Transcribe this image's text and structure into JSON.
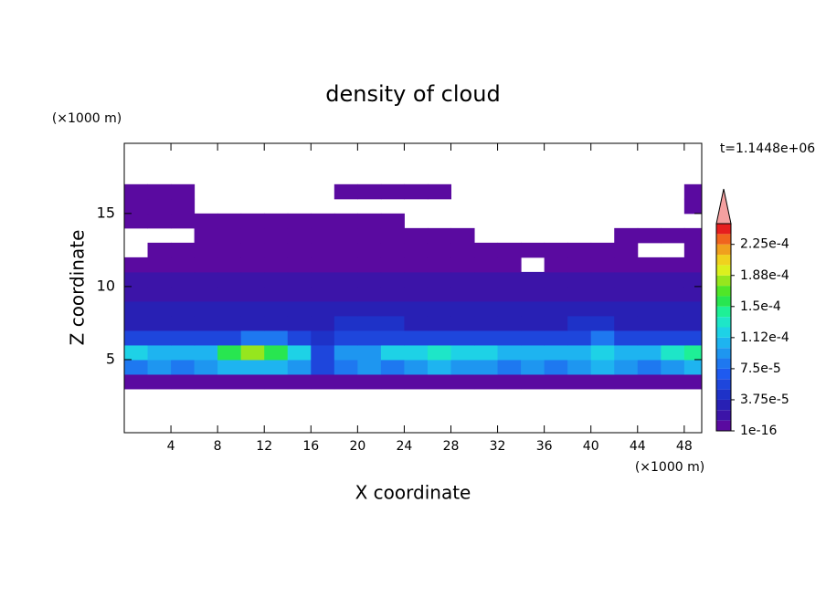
{
  "chart_data": {
    "type": "contour",
    "title": "density of cloud",
    "x_label": "X coordinate",
    "y_label": "Z coordinate",
    "x_unit": "(×1000 m)",
    "y_unit": "(×1000 m)",
    "time_label": "t=1.1448e+06",
    "xlim": [
      0,
      49.5
    ],
    "ylim": [
      0,
      19.8
    ],
    "xticks": [
      4,
      8,
      12,
      16,
      20,
      24,
      28,
      32,
      36,
      40,
      44,
      48
    ],
    "yticks": [
      5,
      10,
      15
    ],
    "x_edges": [
      0,
      2,
      4,
      6,
      8,
      10,
      12,
      14,
      16,
      18,
      20,
      22,
      24,
      26,
      28,
      30,
      32,
      34,
      36,
      38,
      40,
      42,
      44,
      46,
      48,
      50
    ],
    "y_edges": [
      0,
      1,
      2,
      3,
      4,
      5,
      6,
      7,
      8,
      9,
      10,
      11,
      12,
      13,
      14,
      15,
      16,
      17,
      18,
      19,
      20
    ],
    "z": [
      [
        null,
        null,
        null,
        null,
        null,
        null,
        null,
        null,
        null,
        null,
        null,
        null,
        null,
        null,
        null,
        null,
        null,
        null,
        null,
        null,
        null,
        null,
        null,
        null,
        null
      ],
      [
        null,
        null,
        null,
        null,
        null,
        null,
        null,
        null,
        null,
        null,
        null,
        null,
        null,
        null,
        null,
        null,
        null,
        null,
        null,
        null,
        null,
        null,
        null,
        null,
        null
      ],
      [
        null,
        null,
        null,
        null,
        null,
        null,
        null,
        null,
        null,
        null,
        null,
        null,
        null,
        null,
        null,
        null,
        null,
        null,
        null,
        null,
        null,
        null,
        null,
        null,
        null
      ],
      [
        1e-05,
        1e-05,
        1e-05,
        1e-05,
        1e-05,
        1e-05,
        1e-05,
        1e-05,
        1e-05,
        1e-05,
        1e-05,
        1e-05,
        1e-05,
        1e-05,
        1e-05,
        1e-05,
        1e-05,
        1e-05,
        1e-05,
        1e-05,
        1e-05,
        1e-05,
        1e-05,
        1e-05,
        1e-05
      ],
      [
        8e-05,
        9e-05,
        8e-05,
        9e-05,
        0.0001,
        0.0001,
        0.0001,
        9e-05,
        6e-05,
        8e-05,
        9e-05,
        8e-05,
        9e-05,
        0.0001,
        9e-05,
        9e-05,
        8e-05,
        9e-05,
        8e-05,
        9e-05,
        0.0001,
        9e-05,
        8e-05,
        9e-05,
        0.0001
      ],
      [
        0.00012,
        0.00011,
        0.00011,
        0.00011,
        0.00016,
        0.00018,
        0.00016,
        0.00012,
        6e-05,
        9e-05,
        9e-05,
        0.00012,
        0.00012,
        0.00013,
        0.00012,
        0.00012,
        0.0001,
        0.0001,
        0.0001,
        0.00011,
        0.00012,
        0.00011,
        0.00011,
        0.00013,
        0.00014
      ],
      [
        5e-05,
        5e-05,
        5e-05,
        5e-05,
        6e-05,
        8e-05,
        8e-05,
        6e-05,
        4e-05,
        6e-05,
        5e-05,
        5e-05,
        5e-05,
        6e-05,
        5e-05,
        5e-05,
        5e-05,
        5e-05,
        5e-05,
        6e-05,
        8e-05,
        5e-05,
        5e-05,
        5e-05,
        6e-05
      ],
      [
        3e-05,
        3e-05,
        3e-05,
        3e-05,
        3e-05,
        3e-05,
        3e-05,
        3e-05,
        3e-05,
        4e-05,
        4e-05,
        4e-05,
        3e-05,
        3e-05,
        3e-05,
        3e-05,
        3e-05,
        3e-05,
        3e-05,
        4e-05,
        4e-05,
        3e-05,
        3e-05,
        3e-05,
        3e-05
      ],
      [
        2.5e-05,
        2.5e-05,
        2.5e-05,
        2.5e-05,
        2.5e-05,
        2.5e-05,
        2.5e-05,
        2.5e-05,
        2.5e-05,
        2.5e-05,
        3e-05,
        2.5e-05,
        2.5e-05,
        2.5e-05,
        2.5e-05,
        2.5e-05,
        2.5e-05,
        2.5e-05,
        2.5e-05,
        2.5e-05,
        3e-05,
        2.5e-05,
        2.5e-05,
        2.5e-05,
        2.5e-05
      ],
      [
        2e-05,
        2e-05,
        2e-05,
        2e-05,
        2e-05,
        2e-05,
        2e-05,
        2e-05,
        2e-05,
        2e-05,
        2e-05,
        2e-05,
        2e-05,
        2e-05,
        2e-05,
        2e-05,
        2e-05,
        2e-05,
        2e-05,
        2e-05,
        2e-05,
        2e-05,
        2e-05,
        2e-05,
        2e-05
      ],
      [
        2e-05,
        2e-05,
        2e-05,
        2e-05,
        2e-05,
        2e-05,
        2e-05,
        2e-05,
        2e-05,
        2e-05,
        2e-05,
        2e-05,
        2e-05,
        2e-05,
        2e-05,
        2e-05,
        2e-05,
        2e-05,
        2e-05,
        2e-05,
        2e-05,
        2e-05,
        2e-05,
        2e-05,
        2e-05
      ],
      [
        1e-05,
        1e-05,
        1e-05,
        1e-05,
        1e-05,
        1e-05,
        1e-05,
        1e-05,
        1e-05,
        1e-05,
        1e-05,
        1e-05,
        1e-05,
        1e-05,
        1e-05,
        1e-05,
        1e-05,
        null,
        1e-05,
        1e-05,
        1e-05,
        1e-05,
        1e-05,
        1e-05,
        1e-05
      ],
      [
        null,
        1e-05,
        1e-05,
        1e-05,
        1e-05,
        1e-05,
        1e-05,
        1e-05,
        1e-05,
        1e-05,
        1e-05,
        1e-05,
        1e-05,
        1e-05,
        1e-05,
        1e-05,
        1e-05,
        1e-05,
        1e-05,
        1e-05,
        1e-05,
        1e-05,
        null,
        null,
        1e-05
      ],
      [
        null,
        null,
        null,
        1e-05,
        1e-05,
        1e-05,
        1e-05,
        1e-05,
        1e-05,
        1e-05,
        1e-05,
        1e-05,
        1e-05,
        1e-05,
        1e-05,
        null,
        null,
        null,
        null,
        null,
        null,
        1e-05,
        1e-05,
        1e-05,
        1e-05
      ],
      [
        1e-05,
        1e-05,
        1e-05,
        1e-05,
        1e-05,
        1e-05,
        1e-05,
        1e-05,
        1e-05,
        1e-05,
        1e-05,
        1e-05,
        null,
        null,
        null,
        null,
        null,
        null,
        null,
        null,
        null,
        null,
        null,
        null,
        null
      ],
      [
        1e-05,
        1e-05,
        1e-05,
        null,
        null,
        null,
        null,
        null,
        null,
        null,
        null,
        null,
        null,
        null,
        null,
        null,
        null,
        null,
        null,
        null,
        null,
        null,
        null,
        null,
        1e-05
      ],
      [
        1e-05,
        1e-05,
        1e-05,
        null,
        null,
        null,
        null,
        null,
        null,
        1e-05,
        1e-05,
        1e-05,
        1e-05,
        1e-05,
        null,
        null,
        null,
        null,
        null,
        null,
        null,
        null,
        null,
        null,
        1e-05
      ],
      [
        null,
        null,
        null,
        null,
        null,
        null,
        null,
        null,
        null,
        null,
        null,
        null,
        null,
        null,
        null,
        null,
        null,
        null,
        null,
        null,
        null,
        null,
        null,
        null,
        null
      ],
      [
        null,
        null,
        null,
        null,
        null,
        null,
        null,
        null,
        null,
        null,
        null,
        null,
        null,
        null,
        null,
        null,
        null,
        null,
        null,
        null,
        null,
        null,
        null,
        null,
        null
      ],
      [
        null,
        null,
        null,
        null,
        null,
        null,
        null,
        null,
        null,
        null,
        null,
        null,
        null,
        null,
        null,
        null,
        null,
        null,
        null,
        null,
        null,
        null,
        null,
        null,
        null
      ]
    ],
    "levels": [
      1e-16,
      1.25e-05,
      2.5e-05,
      3.75e-05,
      5e-05,
      6.25e-05,
      7.5e-05,
      8.75e-05,
      0.0001,
      0.0001125,
      0.000125,
      0.0001375,
      0.00015,
      0.0001625,
      0.000175,
      0.0001875,
      0.0002,
      0.0002125,
      0.000225,
      0.0002375,
      0.00025
    ],
    "colors": [
      "#5a0aa0",
      "#3c14a8",
      "#2820b4",
      "#1e32c8",
      "#1e46dc",
      "#1e5af0",
      "#1e78f0",
      "#1e96f0",
      "#1eb4f0",
      "#1ed2e6",
      "#1ee6c8",
      "#1ef096",
      "#28e650",
      "#50e628",
      "#96e61e",
      "#dcf01e",
      "#f0d21e",
      "#f0a01e",
      "#f0641e",
      "#e61e1e"
    ],
    "over_color": "#f4a0a0",
    "cticks": [
      1e-16,
      {
        "value": 3.75e-05,
        "label": "3.75e-5"
      },
      {
        "value": 7.5e-05,
        "label": "7.5e-5"
      },
      {
        "value": 0.0001125,
        "label": "1.12e-4"
      },
      {
        "value": 0.00015,
        "label": "1.5e-4"
      },
      {
        "value": 0.0001875,
        "label": "1.88e-4"
      },
      {
        "value": 0.000225,
        "label": "2.25e-4"
      }
    ]
  }
}
